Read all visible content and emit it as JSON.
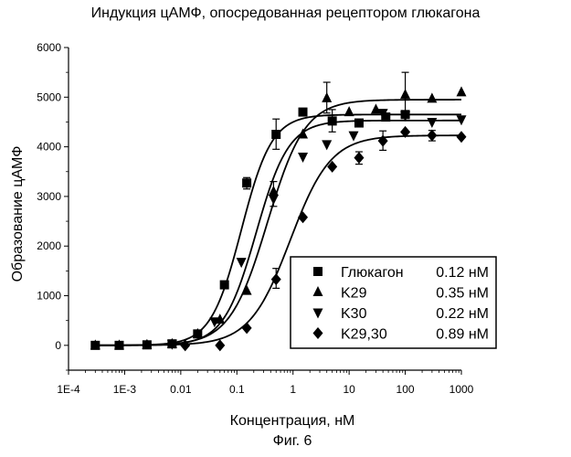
{
  "chart_data": {
    "type": "scatter",
    "title": "Индукция цАМФ, опосредованная рецептором глюкагона",
    "xlabel": "Концентрация, нМ",
    "ylabel": "Образование цАМФ",
    "caption": "Фиг. 6",
    "x_scale": "log",
    "xlim": [
      0.0001,
      1000
    ],
    "ylim": [
      -500,
      6000
    ],
    "x_ticks": [
      {
        "value": 0.0001,
        "label": "1E-4"
      },
      {
        "value": 0.001,
        "label": "1E-3"
      },
      {
        "value": 0.01,
        "label": "0.01"
      },
      {
        "value": 0.1,
        "label": "0.1"
      },
      {
        "value": 1,
        "label": "1"
      },
      {
        "value": 10,
        "label": "10"
      },
      {
        "value": 100,
        "label": "100"
      },
      {
        "value": 1000,
        "label": "1000"
      }
    ],
    "y_ticks": [
      0,
      1000,
      2000,
      3000,
      4000,
      5000,
      6000
    ],
    "legend_position": "bottom-right",
    "series": [
      {
        "name": "Глюкагон",
        "ec50": "0.12 нМ",
        "marker": "square",
        "points": [
          {
            "x": 0.0003,
            "y": 0
          },
          {
            "x": 0.0008,
            "y": 0
          },
          {
            "x": 0.0025,
            "y": 10
          },
          {
            "x": 0.007,
            "y": 30
          },
          {
            "x": 0.02,
            "y": 230
          },
          {
            "x": 0.06,
            "y": 1220
          },
          {
            "x": 0.15,
            "y": 3270
          },
          {
            "x": 0.5,
            "y": 4250
          },
          {
            "x": 1.5,
            "y": 4700
          },
          {
            "x": 5,
            "y": 4520
          },
          {
            "x": 15,
            "y": 4480
          },
          {
            "x": 45,
            "y": 4600
          },
          {
            "x": 100,
            "y": 4650
          }
        ],
        "fit": {
          "bottom": 0,
          "top": 4650,
          "hill": 1.6
        }
      },
      {
        "name": "K29",
        "ec50": "0.35 нМ",
        "marker": "triangle-up",
        "points": [
          {
            "x": 0.0003,
            "y": 0
          },
          {
            "x": 0.0008,
            "y": 0
          },
          {
            "x": 0.0025,
            "y": 10
          },
          {
            "x": 0.007,
            "y": 30
          },
          {
            "x": 0.02,
            "y": 230
          },
          {
            "x": 0.05,
            "y": 520
          },
          {
            "x": 0.15,
            "y": 1100
          },
          {
            "x": 0.45,
            "y": 3100
          },
          {
            "x": 1.5,
            "y": 4250
          },
          {
            "x": 4,
            "y": 4980
          },
          {
            "x": 10,
            "y": 4700
          },
          {
            "x": 30,
            "y": 4750
          },
          {
            "x": 100,
            "y": 5050
          },
          {
            "x": 300,
            "y": 4970
          },
          {
            "x": 1000,
            "y": 5100
          }
        ],
        "fit": {
          "bottom": 0,
          "top": 4950,
          "hill": 1.3
        }
      },
      {
        "name": "K30",
        "ec50": "0.22 нМ",
        "marker": "triangle-down",
        "points": [
          {
            "x": 0.007,
            "y": 30
          },
          {
            "x": 0.04,
            "y": 480
          },
          {
            "x": 0.12,
            "y": 1680
          },
          {
            "x": 0.45,
            "y": 2950
          },
          {
            "x": 1.5,
            "y": 3800
          },
          {
            "x": 4,
            "y": 4050
          },
          {
            "x": 12,
            "y": 4230
          },
          {
            "x": 40,
            "y": 4680
          },
          {
            "x": 100,
            "y": 4630
          },
          {
            "x": 300,
            "y": 4500
          },
          {
            "x": 1000,
            "y": 4550
          }
        ],
        "fit": {
          "bottom": 0,
          "top": 4530,
          "hill": 1.5
        }
      },
      {
        "name": "K29,30",
        "ec50": "0.89 нМ",
        "marker": "diamond",
        "points": [
          {
            "x": 0.012,
            "y": 0
          },
          {
            "x": 0.05,
            "y": 0
          },
          {
            "x": 0.15,
            "y": 350
          },
          {
            "x": 0.5,
            "y": 1330
          },
          {
            "x": 1.5,
            "y": 2580
          },
          {
            "x": 5,
            "y": 3600
          },
          {
            "x": 15,
            "y": 3780
          },
          {
            "x": 40,
            "y": 4120
          },
          {
            "x": 100,
            "y": 4300
          },
          {
            "x": 300,
            "y": 4230
          },
          {
            "x": 1000,
            "y": 4200
          }
        ],
        "fit": {
          "bottom": 0,
          "top": 4230,
          "hill": 1.2
        }
      }
    ],
    "error_bars": [
      {
        "x": 0.15,
        "low": 3150,
        "high": 3380
      },
      {
        "x": 0.5,
        "low": 3950,
        "high": 4560
      },
      {
        "x": 0.45,
        "low": 2800,
        "high": 3300
      },
      {
        "x": 0.5,
        "low": 1150,
        "high": 1550
      },
      {
        "x": 4,
        "low": 4680,
        "high": 5300
      },
      {
        "x": 5,
        "low": 4300,
        "high": 4750
      },
      {
        "x": 15,
        "low": 3650,
        "high": 3900
      },
      {
        "x": 40,
        "low": 3930,
        "high": 4320
      },
      {
        "x": 100,
        "low": 4650,
        "high": 5500
      },
      {
        "x": 300,
        "low": 4120,
        "high": 4330
      }
    ]
  }
}
